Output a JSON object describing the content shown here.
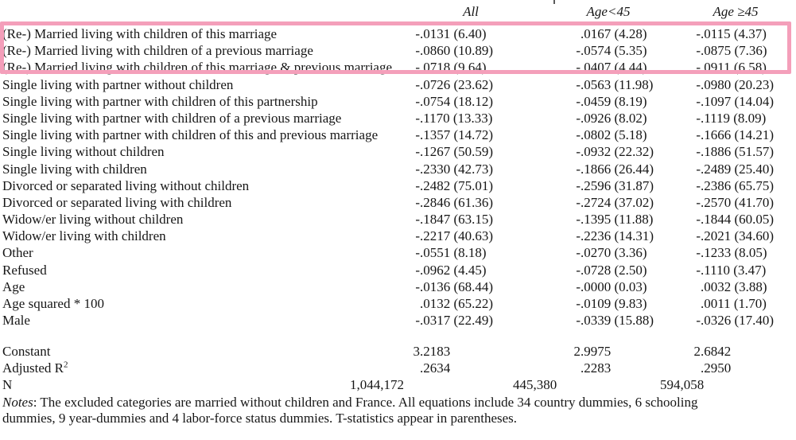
{
  "highlight": {
    "color": "#f49fba",
    "rows_highlighted": 3
  },
  "columns": [
    "All",
    "Age<45",
    "Age ≥45"
  ],
  "table": {
    "rows": [
      {
        "label": "(Re-) Married living with children of this marriage",
        "values": [
          "-.0131 (6.40)",
          ".0167 (4.28)",
          "-.0115 (4.37)"
        ],
        "highlighted": true
      },
      {
        "label": "(Re-) Married living with children of a previous marriage",
        "values": [
          "-.0860 (10.89)",
          "-.0574 (5.35)",
          "-.0875 (7.36)"
        ],
        "highlighted": true
      },
      {
        "label": "(Re-) Married living with children of this marriage & previous marriage",
        "values": [
          "-.0718 (9.64)",
          "-.0407 (4.44)",
          "-.0911 (6.58)"
        ],
        "highlighted": true
      },
      {
        "label": "Single living with partner without children",
        "values": [
          "-.0726 (23.62)",
          "-.0563 (11.98)",
          "-.0980 (20.23)"
        ]
      },
      {
        "label": "Single living with partner with children of this partnership",
        "values": [
          "-.0754 (18.12)",
          "-.0459 (8.19)",
          "-.1097 (14.04)"
        ]
      },
      {
        "label": "Single living with partner with children of a previous marriage",
        "values": [
          "-.1170 (13.33)",
          "-.0926 (8.02)",
          "-.1119 (8.09)"
        ]
      },
      {
        "label": "Single living with partner with children of this and previous marriage",
        "values": [
          "-.1357 (14.72)",
          "-.0802 (5.18)",
          "-.1666 (14.21)"
        ]
      },
      {
        "label": "Single living without children",
        "values": [
          "-.1267 (50.59)",
          "-.0932 (22.32)",
          "-.1886 (51.57)"
        ]
      },
      {
        "label": "Single living with children",
        "values": [
          "-.2330 (42.73)",
          "-.1866 (26.44)",
          "-.2489 (25.40)"
        ]
      },
      {
        "label": "Divorced or separated living without children",
        "values": [
          "-.2482 (75.01)",
          "-.2596 (31.87)",
          "-.2386 (65.75)"
        ]
      },
      {
        "label": "Divorced or separated living with children",
        "values": [
          "-.2846 (61.36)",
          "-.2724 (37.02)",
          "-.2570 (41.70)"
        ]
      },
      {
        "label": "Widow/er living without children",
        "values": [
          "-.1847 (63.15)",
          "-.1395 (11.88)",
          "-.1844 (60.05)"
        ]
      },
      {
        "label": "Widow/er living with children",
        "values": [
          "-.2217 (40.63)",
          "-.2236 (14.31)",
          "-.2021 (34.60)"
        ]
      },
      {
        "label": "Other",
        "values": [
          "-.0551 (8.18)",
          "-.0270 (3.36)",
          "-.1233 (8.05)"
        ]
      },
      {
        "label": "Refused",
        "values": [
          "-.0962 (4.45)",
          "-.0728 (2.50)",
          "-.1110 (3.47)"
        ]
      },
      {
        "label": "Age",
        "values": [
          "-.0136 (68.44)",
          "-.0000 (0.03)",
          ".0032 (3.88)"
        ]
      },
      {
        "label": "Age squared * 100",
        "values": [
          ".0132 (65.22)",
          "-.0109 (9.83)",
          ".0011 (1.70)"
        ]
      },
      {
        "label": "Male",
        "values": [
          "-.0317 (22.49)",
          "-.0339 (15.88)",
          "-.0326 (17.40)"
        ]
      }
    ],
    "summary_rows": [
      {
        "label": "Constant",
        "values": [
          "3.2183",
          "2.9975",
          "2.6842"
        ]
      },
      {
        "label": "Adjusted R",
        "label_sup": "2",
        "values": [
          ".2634",
          ".2283",
          ".2950"
        ]
      },
      {
        "label": "N",
        "align": "n",
        "values": [
          "1,044,172",
          "445,380",
          "594,058"
        ]
      }
    ]
  },
  "notes": {
    "label": "Notes",
    "line1": ": The excluded categories are married without children and France. All equations include 34 country dummies, 6 schooling",
    "line2": "dummies, 9 year-dummies and 4 labor-force status dummies. T-statistics appear in parentheses."
  }
}
